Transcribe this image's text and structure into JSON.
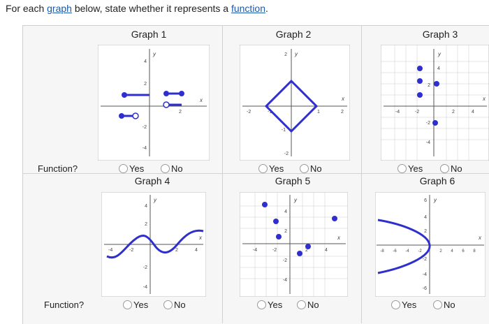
{
  "prompt": {
    "pre": "For each ",
    "link1": "graph",
    "mid": " below, state whether it represents a ",
    "link2": "function",
    "post": "."
  },
  "row_label": "Function?",
  "options": {
    "yes": "Yes",
    "no": "No"
  },
  "graphs": [
    {
      "title": "Graph 1",
      "ticks": [
        "4",
        "2",
        "-2",
        "-4",
        "2",
        "x",
        "y"
      ]
    },
    {
      "title": "Graph 2",
      "ticks": [
        "2",
        "-2",
        "-1",
        "1",
        "2",
        "-1",
        "-2",
        "x",
        "y"
      ]
    },
    {
      "title": "Graph 3",
      "ticks": [
        "4",
        "2",
        "-2",
        "-4",
        "-2",
        "2",
        "4",
        "-4",
        "x",
        "y"
      ]
    },
    {
      "title": "Graph 4",
      "ticks": [
        "4",
        "2",
        "-4",
        "-2",
        "2",
        "4",
        "-2",
        "-4",
        "x",
        "y"
      ]
    },
    {
      "title": "Graph 5",
      "ticks": [
        "4",
        "2",
        "-4",
        "-2",
        "2",
        "4",
        "-2",
        "-4",
        "x",
        "y"
      ]
    },
    {
      "title": "Graph 6",
      "ticks": [
        "6",
        "4",
        "2",
        "-8",
        "-6",
        "-4",
        "-2",
        "2",
        "4",
        "6",
        "8",
        "-2",
        "-4",
        "-6",
        "x",
        "y"
      ]
    }
  ],
  "colors": {
    "curve": "#2f2fd0",
    "link": "#1a5aa8",
    "grid": "#c9c9c9"
  }
}
